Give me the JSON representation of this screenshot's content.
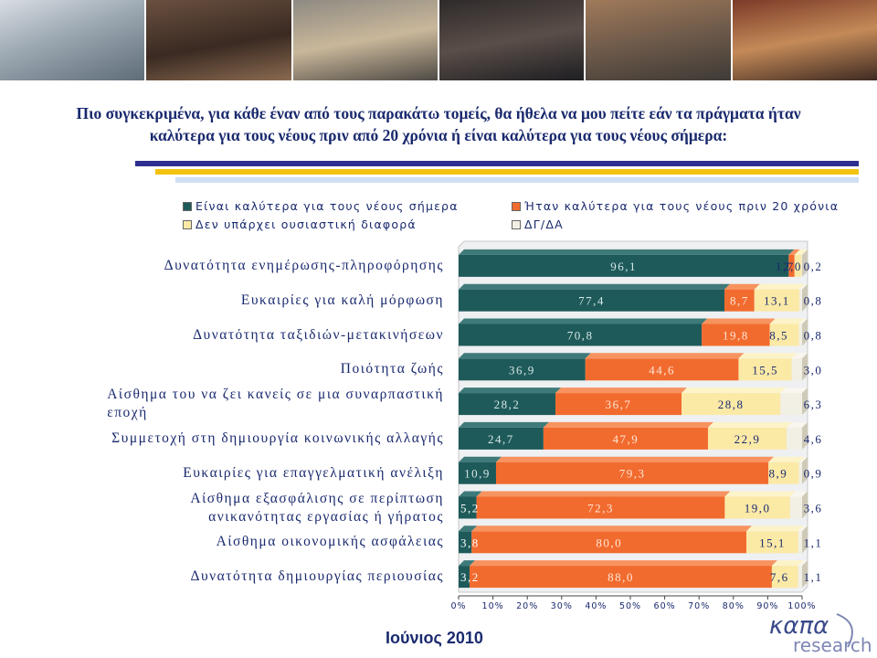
{
  "question": {
    "line1": "Πιο συγκεκριμένα, για κάθε έναν από τους παρακάτω τομείς, θα ήθελα να μου πείτε εάν τα πράγματα ήταν",
    "line2": "καλύτερα για τους νέους πριν από 20 χρόνια ή είναι καλύτερα για τους νέους σήμερα:"
  },
  "date_label": "Ιούνιος 2010",
  "logo": {
    "main": "καπα",
    "sub": "research"
  },
  "colors": {
    "today": "#1e5a5a",
    "before": "#f26b2e",
    "no_difference": "#fbe9a6",
    "dk": "#f2efe4",
    "title": "#1a2a6e"
  },
  "chart_data": {
    "type": "bar",
    "orientation": "horizontal",
    "stacked": "percent",
    "legend_position": "top",
    "xlim": [
      0,
      100
    ],
    "xticks": [
      "0%",
      "10%",
      "20%",
      "30%",
      "40%",
      "50%",
      "60%",
      "70%",
      "80%",
      "90%",
      "100%"
    ],
    "categories": [
      "Δυνατότητα ενημέρωσης-πληροφόρησης",
      "Ευκαιρίες για καλή μόρφωση",
      "Δυνατότητα ταξιδιών-μετακινήσεων",
      "Ποιότητα ζωής",
      "Αίσθημα του να ζει κανείς σε μια συναρπαστική εποχή",
      "Συμμετοχή στη δημιουργία κοινωνικής αλλαγής",
      "Ευκαιρίες για επαγγελματική ανέλιξη",
      "Αίσθημα εξασφάλισης σε περίπτωση ανικανότητας εργασίας ή γήρατος",
      "Αίσθημα οικονομικής ασφάλειας",
      "Δυνατότητα δημιουργίας περιουσίας"
    ],
    "category_lines": [
      [
        "Δυνατότητα ενημέρωσης-πληροφόρησης"
      ],
      [
        "Ευκαιρίες για καλή μόρφωση"
      ],
      [
        "Δυνατότητα ταξιδιών-μετακινήσεων"
      ],
      [
        "Ποιότητα ζωής"
      ],
      [
        "Αίσθημα του να ζει κανείς σε μια συναρπαστική",
        "εποχή"
      ],
      [
        "Συμμετοχή στη δημιουργία κοινωνικής αλλαγής"
      ],
      [
        "Ευκαιρίες για επαγγελματική ανέλιξη"
      ],
      [
        "Αίσθημα εξασφάλισης σε περίπτωση",
        "ανικανότητας εργασίας ή γήρατος"
      ],
      [
        "Αίσθημα οικονομικής ασφάλειας"
      ],
      [
        "Δυνατότητα δημιουργίας περιουσίας"
      ]
    ],
    "series": [
      {
        "name": "Είναι καλύτερα για τους νέους σήμερα",
        "values": [
          96.1,
          77.4,
          70.8,
          36.9,
          28.2,
          24.7,
          10.9,
          5.2,
          3.8,
          3.2
        ],
        "labels": [
          "96,1",
          "77,4",
          "70,8",
          "36,9",
          "28,2",
          "24,7",
          "10,9",
          "5,2",
          "3,8",
          "3,2"
        ]
      },
      {
        "name": "Ήταν καλύτερα για τους νέους πριν 20 χρόνια",
        "values": [
          1.7,
          8.7,
          19.8,
          44.6,
          36.7,
          47.9,
          79.3,
          72.3,
          80.0,
          88.0
        ],
        "labels": [
          "1,7",
          "8,7",
          "19,8",
          "44,6",
          "36,7",
          "47,9",
          "79,3",
          "72,3",
          "80,0",
          "88,0"
        ]
      },
      {
        "name": "Δεν υπάρχει ουσιαστική διαφορά",
        "values": [
          2.0,
          13.1,
          8.5,
          15.5,
          28.8,
          22.9,
          8.9,
          19.0,
          15.1,
          7.6
        ],
        "labels": [
          "2,0",
          "13,1",
          "8,5",
          "15,5",
          "28,8",
          "22,9",
          "8,9",
          "19,0",
          "15,1",
          "7,6"
        ]
      },
      {
        "name": "ΔΓ/ΔΑ",
        "values": [
          0.2,
          0.8,
          0.8,
          3.0,
          6.3,
          4.6,
          0.9,
          3.6,
          1.1,
          1.1
        ],
        "labels": [
          "0,2",
          "0,8",
          "0,8",
          "3,0",
          "6,3",
          "4,6",
          "0,9",
          "3,6",
          "1,1",
          "1,1"
        ]
      }
    ]
  }
}
